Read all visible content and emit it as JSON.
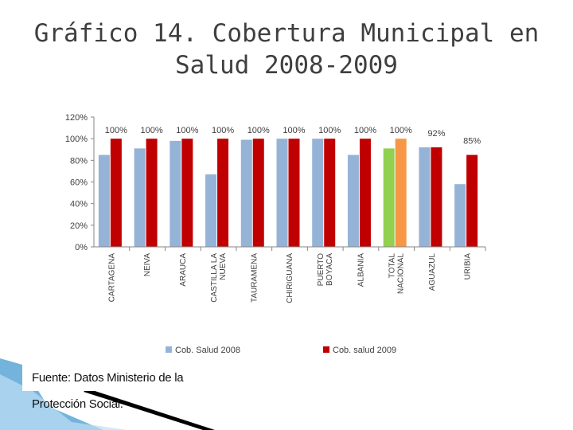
{
  "title": {
    "line1": "Gráfico 14. Cobertura Municipal en",
    "line2": "Salud 2008-2009"
  },
  "source": "Fuente: Datos Ministerio de la Protección Social.",
  "chart_data": {
    "type": "bar",
    "categories": [
      "CARTAGENA",
      "NEIVA",
      "ARAUCA",
      "CASTILLA LA NUEVA",
      "TAURAMENA",
      "CHIRIGUANA",
      "PUERTO BOYACA",
      "ALBANIA",
      "TOTAL NACIONAL",
      "AGUAZUL",
      "URIBIA"
    ],
    "category_lines": [
      [
        "CARTAGENA"
      ],
      [
        "NEIVA"
      ],
      [
        "ARAUCA"
      ],
      [
        "CASTILLA LA",
        "NUEVA"
      ],
      [
        "TAURAMENA"
      ],
      [
        "CHIRIGUANA"
      ],
      [
        "PUERTO",
        "BOYACA"
      ],
      [
        "ALBANIA"
      ],
      [
        "TOTAL",
        "NACIONAL"
      ],
      [
        "AGUAZUL"
      ],
      [
        "URIBIA"
      ]
    ],
    "series": [
      {
        "name": "Cob. Salud 2008",
        "color": "#95b3d7",
        "values": [
          85,
          91,
          98,
          67,
          99,
          100,
          100,
          85,
          91,
          92,
          58
        ]
      },
      {
        "name": "Cob. salud 2009",
        "color": "#c00000",
        "values": [
          100,
          100,
          100,
          100,
          100,
          100,
          100,
          100,
          100,
          92,
          85
        ]
      }
    ],
    "highlight": {
      "category_index": 8,
      "colors": [
        "#92d050",
        "#f79646"
      ]
    },
    "data_labels": [
      "100%",
      "100%",
      "100%",
      "100%",
      "100%",
      "100%",
      "100%",
      "100%",
      "100%",
      "92%",
      "85%"
    ],
    "y_ticks": [
      "0%",
      "20%",
      "40%",
      "60%",
      "80%",
      "100%",
      "120%"
    ],
    "y_tick_values": [
      0,
      20,
      40,
      60,
      80,
      100,
      120
    ],
    "ylim": [
      0,
      120
    ],
    "legend_position": "bottom",
    "grid": false
  },
  "colors": {
    "title": "#3f3f3f",
    "axis": "#868686",
    "label": "#404040",
    "deco_blue": "#5aa6d6"
  }
}
